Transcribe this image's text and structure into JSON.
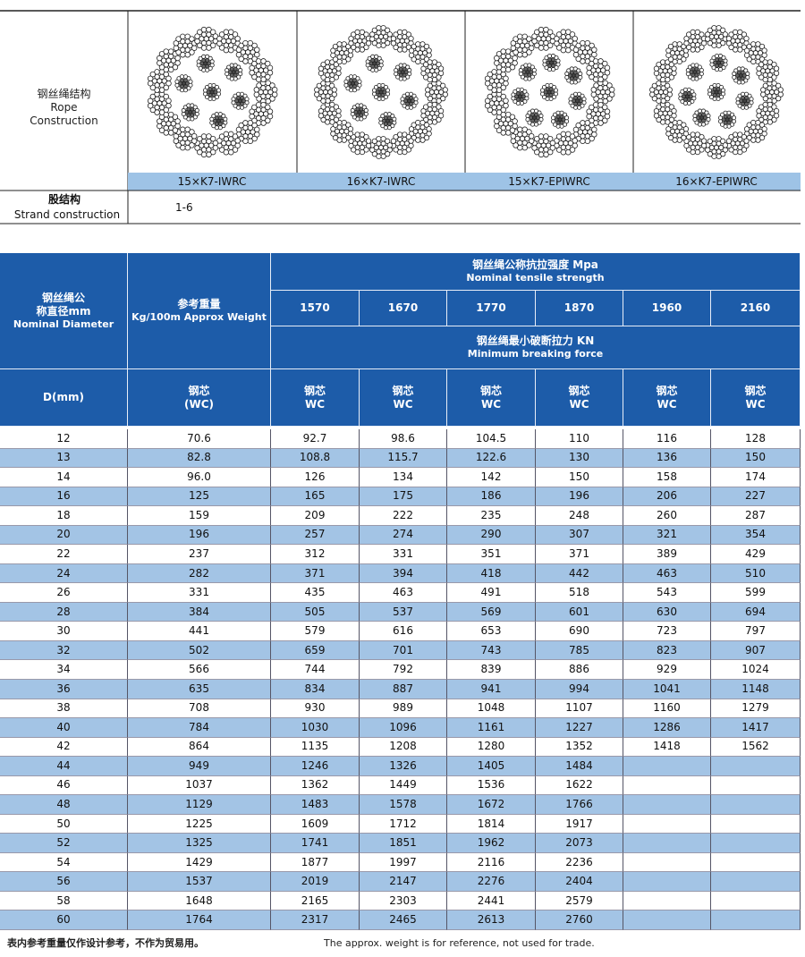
{
  "construction": {
    "label_cn": "钢丝绳结构",
    "label_en_1": "Rope",
    "label_en_2": "Construction",
    "types": [
      "15×K7-IWRC",
      "16×K7-IWRC",
      "15×K7-EPIWRC",
      "16×K7-EPIWRC"
    ],
    "strand_label_cn": "股结构",
    "strand_label_en": "Strand construction",
    "strand_value": "1-6"
  },
  "table": {
    "diameter_header": [
      "钢丝绳公",
      "称直径mm",
      "Nominal Diameter"
    ],
    "weight_header": [
      "参考重量",
      "Kg/100m Approx Weight"
    ],
    "tensile_title_cn": "钢丝绳公称抗拉强度 Mpa",
    "tensile_title_en": "Nominal tensile strength",
    "grades": [
      "1570",
      "1670",
      "1770",
      "1870",
      "1960",
      "2160"
    ],
    "breaking_title_cn": "钢丝绳最小破断拉力 KN",
    "breaking_title_en": "Minimum breaking force",
    "d_header": "D(mm)",
    "core_cn": "钢芯",
    "weight_core": "(WC)",
    "grade_core": "WC",
    "rows": [
      [
        "12",
        "70.6",
        "92.7",
        "98.6",
        "104.5",
        "110",
        "116",
        "128"
      ],
      [
        "13",
        "82.8",
        "108.8",
        "115.7",
        "122.6",
        "130",
        "136",
        "150"
      ],
      [
        "14",
        "96.0",
        "126",
        "134",
        "142",
        "150",
        "158",
        "174"
      ],
      [
        "16",
        "125",
        "165",
        "175",
        "186",
        "196",
        "206",
        "227"
      ],
      [
        "18",
        "159",
        "209",
        "222",
        "235",
        "248",
        "260",
        "287"
      ],
      [
        "20",
        "196",
        "257",
        "274",
        "290",
        "307",
        "321",
        "354"
      ],
      [
        "22",
        "237",
        "312",
        "331",
        "351",
        "371",
        "389",
        "429"
      ],
      [
        "24",
        "282",
        "371",
        "394",
        "418",
        "442",
        "463",
        "510"
      ],
      [
        "26",
        "331",
        "435",
        "463",
        "491",
        "518",
        "543",
        "599"
      ],
      [
        "28",
        "384",
        "505",
        "537",
        "569",
        "601",
        "630",
        "694"
      ],
      [
        "30",
        "441",
        "579",
        "616",
        "653",
        "690",
        "723",
        "797"
      ],
      [
        "32",
        "502",
        "659",
        "701",
        "743",
        "785",
        "823",
        "907"
      ],
      [
        "34",
        "566",
        "744",
        "792",
        "839",
        "886",
        "929",
        "1024"
      ],
      [
        "36",
        "635",
        "834",
        "887",
        "941",
        "994",
        "1041",
        "1148"
      ],
      [
        "38",
        "708",
        "930",
        "989",
        "1048",
        "1107",
        "1160",
        "1279"
      ],
      [
        "40",
        "784",
        "1030",
        "1096",
        "1161",
        "1227",
        "1286",
        "1417"
      ],
      [
        "42",
        "864",
        "1135",
        "1208",
        "1280",
        "1352",
        "1418",
        "1562"
      ],
      [
        "44",
        "949",
        "1246",
        "1326",
        "1405",
        "1484"
      ],
      [
        "46",
        "1037",
        "1362",
        "1449",
        "1536",
        "1622"
      ],
      [
        "48",
        "1129",
        "1483",
        "1578",
        "1672",
        "1766"
      ],
      [
        "50",
        "1225",
        "1609",
        "1712",
        "1814",
        "1917"
      ],
      [
        "52",
        "1325",
        "1741",
        "1851",
        "1962",
        "2073"
      ],
      [
        "54",
        "1429",
        "1877",
        "1997",
        "2116",
        "2236"
      ],
      [
        "56",
        "1537",
        "2019",
        "2147",
        "2276",
        "2404"
      ],
      [
        "58",
        "1648",
        "2165",
        "2303",
        "2441",
        "2579"
      ],
      [
        "60",
        "1764",
        "2317",
        "2465",
        "2613",
        "2760"
      ]
    ]
  },
  "footer": {
    "note_cn": "表内参考重量仅作设计参考，不作为贸易用。",
    "note_en": "The approx. weight is for reference, not used for trade."
  }
}
